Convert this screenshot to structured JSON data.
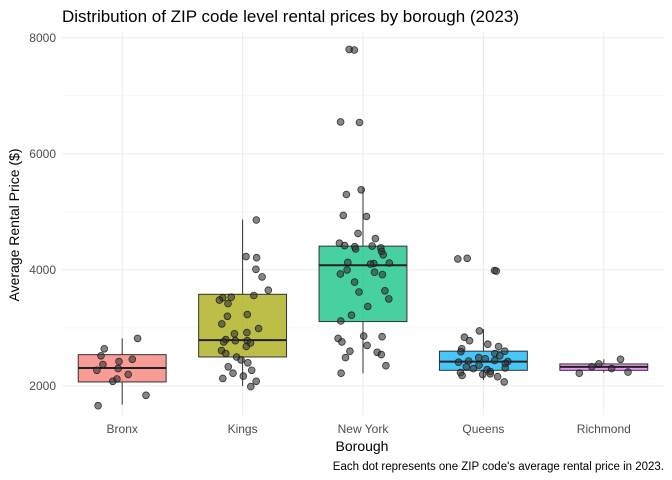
{
  "chart_data": {
    "type": "box",
    "title": "Distribution of ZIP code level rental prices by borough (2023)",
    "xlabel": "Borough",
    "ylabel": "Average Rental Price ($)",
    "caption": "Each dot represents one ZIP code's average rental price in 2023.",
    "categories": [
      "Bronx",
      "Kings",
      "New York",
      "Queens",
      "Richmond"
    ],
    "ylim": [
      1500,
      8100
    ],
    "yticks": [
      2000,
      4000,
      6000,
      8000
    ],
    "yminor": [
      3000,
      5000,
      7000
    ],
    "grid": true,
    "legend": "none",
    "colors": [
      "#F8766D",
      "#A3A500",
      "#00BF7D",
      "#00B0F6",
      "#E76BF3"
    ],
    "boxes": [
      {
        "category": "Bronx",
        "whisker_low": 1680,
        "q1": 2070,
        "median": 2310,
        "q3": 2540,
        "whisker_high": 2820
      },
      {
        "category": "Kings",
        "whisker_low": 2000,
        "q1": 2500,
        "median": 2790,
        "q3": 3580,
        "whisker_high": 4870
      },
      {
        "category": "New York",
        "whisker_low": 2220,
        "q1": 3110,
        "median": 4080,
        "q3": 4410,
        "whisker_high": 5420
      },
      {
        "category": "Queens",
        "whisker_low": 2100,
        "q1": 2270,
        "median": 2420,
        "q3": 2600,
        "whisker_high": 2980
      },
      {
        "category": "Richmond",
        "whisker_low": 2230,
        "q1": 2270,
        "median": 2330,
        "q3": 2380,
        "whisker_high": 2460
      }
    ],
    "points": [
      {
        "category": "Bronx",
        "values": [
          2820,
          2640,
          2520,
          2460,
          2420,
          2370,
          2300,
          2270,
          2200,
          2120,
          2080,
          1840,
          1660
        ]
      },
      {
        "category": "Kings",
        "values": [
          4860,
          4230,
          4210,
          4010,
          3880,
          3650,
          3560,
          3530,
          3520,
          3480,
          3420,
          3230,
          3200,
          3070,
          2990,
          2920,
          2900,
          2800,
          2780,
          2780,
          2760,
          2740,
          2680,
          2610,
          2560,
          2500,
          2450,
          2400,
          2330,
          2270,
          2220,
          2170,
          2130,
          2080,
          1990
        ]
      },
      {
        "category": "New York",
        "values": [
          7800,
          7790,
          6550,
          6540,
          5380,
          5300,
          4940,
          4920,
          4630,
          4540,
          4460,
          4420,
          4410,
          4400,
          4380,
          4360,
          4320,
          4260,
          4130,
          4120,
          4110,
          4100,
          4000,
          3960,
          3930,
          3920,
          3790,
          3640,
          3620,
          3500,
          3370,
          3220,
          3120,
          2860,
          2850,
          2820,
          2760,
          2700,
          2600,
          2580,
          2540,
          2490,
          2350,
          2220
        ]
      },
      {
        "category": "Queens",
        "values": [
          4200,
          4190,
          3990,
          3980,
          2950,
          2840,
          2780,
          2720,
          2680,
          2640,
          2600,
          2590,
          2560,
          2520,
          2490,
          2470,
          2440,
          2430,
          2420,
          2410,
          2390,
          2360,
          2330,
          2310,
          2300,
          2280,
          2250,
          2230,
          2210,
          2200,
          2180,
          2160,
          2070
        ]
      },
      {
        "category": "Richmond",
        "values": [
          2460,
          2380,
          2330,
          2300,
          2240,
          2220
        ]
      }
    ]
  }
}
